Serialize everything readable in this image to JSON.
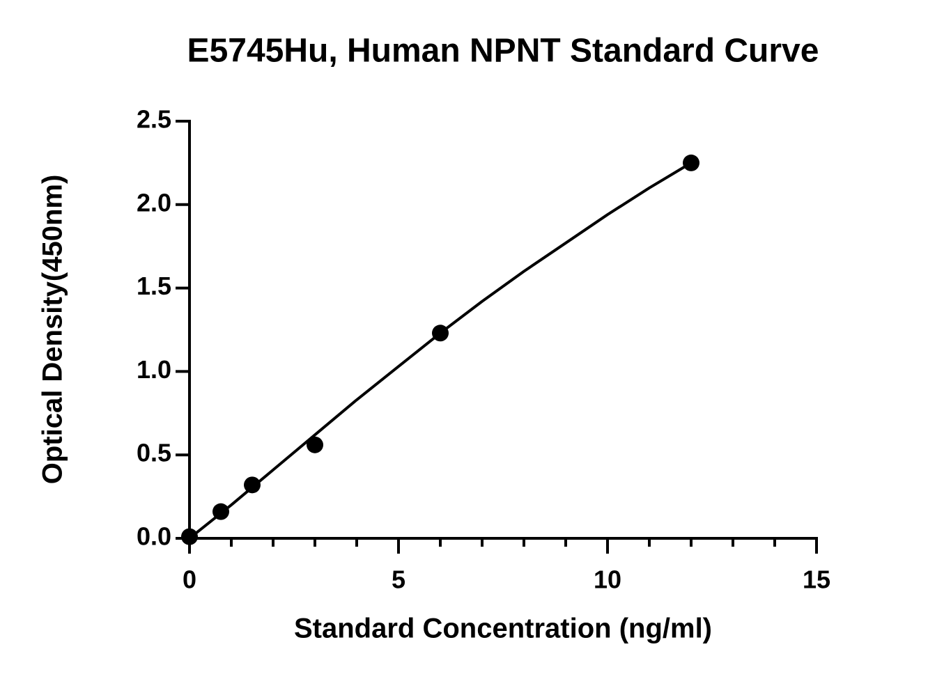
{
  "chart_data": {
    "type": "scatter",
    "title": "E5745Hu, Human NPNT Standard Curve",
    "x_label": "Standard Concentration (ng/ml)",
    "y_label": "Optical Density(450nm)",
    "x": [
      0,
      0.75,
      1.5,
      3,
      6,
      12
    ],
    "values": [
      0.01,
      0.16,
      0.32,
      0.56,
      1.23,
      2.25
    ],
    "color": "#000000",
    "fit": {
      "x": [
        0,
        1,
        2,
        3,
        4,
        5,
        6,
        7,
        8,
        9,
        10,
        11,
        12
      ],
      "values": [
        0,
        0.2,
        0.41,
        0.62,
        0.83,
        1.03,
        1.23,
        1.42,
        1.6,
        1.77,
        1.94,
        2.1,
        2.25
      ]
    },
    "xlim": [
      0,
      15
    ],
    "xticks": [
      0,
      5,
      10,
      15
    ],
    "xminorticks": [
      1,
      2,
      3,
      4,
      6,
      7,
      8,
      9,
      11,
      12,
      13,
      14
    ],
    "ylim": [
      0,
      2.5
    ],
    "yticks": [
      {
        "value": 0,
        "label": "0.0"
      },
      0.5,
      {
        "value": 1,
        "label": "1.0"
      },
      1.5,
      {
        "value": 2,
        "label": "2.0"
      },
      2.5
    ]
  }
}
